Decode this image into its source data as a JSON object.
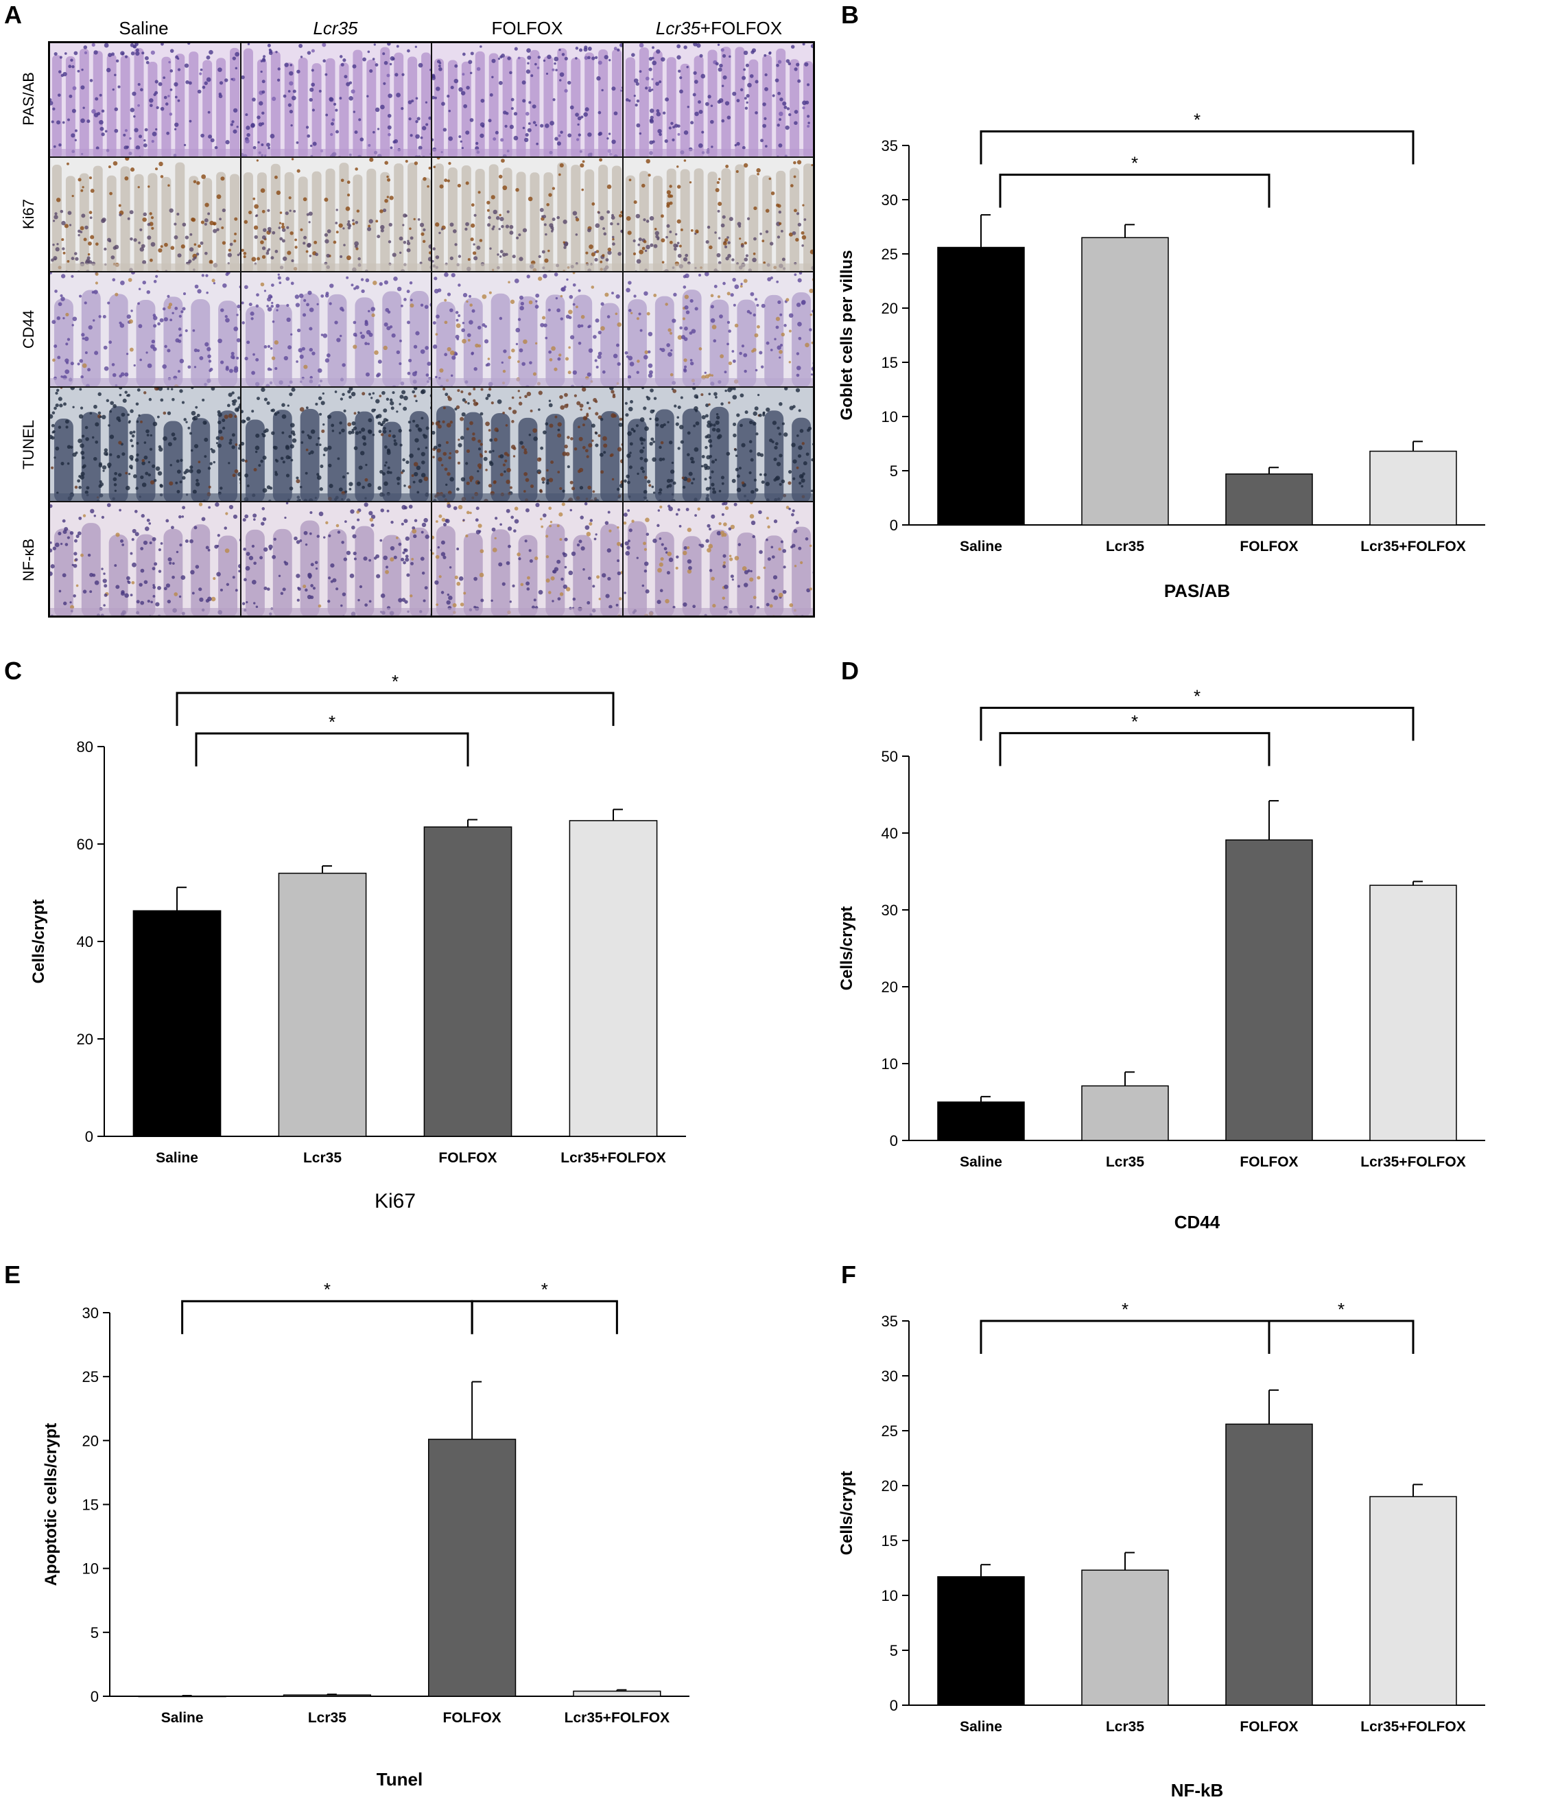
{
  "panel_a": {
    "label": "A",
    "columns": [
      {
        "pre": "",
        "italic": "",
        "post": "Saline"
      },
      {
        "pre": "",
        "italic": "Lcr35",
        "post": ""
      },
      {
        "pre": "",
        "italic": "",
        "post": "FOLFOX"
      },
      {
        "pre": "",
        "italic": "Lcr35",
        "post": "+FOLFOX"
      }
    ],
    "rows": [
      "PAS/AB",
      "Ki67",
      "CD44",
      "TUNEL",
      "NF-κB"
    ],
    "stain_colors": [
      {
        "bg": "#e8dcef",
        "tissue": "#b89ad0",
        "nuclei": "#4b3a8c",
        "accent": "#7a5fb0"
      },
      {
        "bg": "#ececec",
        "tissue": "#c9c2b8",
        "nuclei": "#8a4a14",
        "accent": "#5a4a6a"
      },
      {
        "bg": "#e9e4ee",
        "tissue": "#b7a7cf",
        "nuclei": "#5f4a9a",
        "accent": "#b7874a"
      },
      {
        "bg": "#c9cfd8",
        "tissue": "#4a5570",
        "nuclei": "#1f2a3f",
        "accent": "#6a3a22"
      },
      {
        "bg": "#e9e0ea",
        "tissue": "#b5a0c4",
        "nuclei": "#4a3a80",
        "accent": "#b98a4a"
      }
    ]
  },
  "colors": {
    "Saline": "#000000",
    "Lcr35": "#c0c0c0",
    "FOLFOX": "#606060",
    "Lcr35+FOLFOX": "#e4e4e4"
  },
  "chart_data": [
    {
      "panel": "B",
      "type": "bar",
      "categories": [
        "Saline",
        "Lcr35",
        "FOLFOX",
        "Lcr35+FOLFOX"
      ],
      "values": [
        25.6,
        26.5,
        4.7,
        6.8
      ],
      "errors": [
        3.0,
        1.2,
        0.6,
        0.9
      ],
      "ylabel": "Goblet cells per villus",
      "xlabel": "PAS/AB",
      "ylim": [
        0,
        35
      ],
      "ticks": [
        0,
        5,
        10,
        15,
        20,
        25,
        30,
        35
      ],
      "significance": [
        {
          "from": 0,
          "to": 3,
          "label": "*",
          "level": 36.3
        },
        {
          "from": 0,
          "to": 2,
          "label": "*",
          "level": 32.3
        }
      ]
    },
    {
      "panel": "C",
      "type": "bar",
      "categories": [
        "Saline",
        "Lcr35",
        "FOLFOX",
        "Lcr35+FOLFOX"
      ],
      "values": [
        46.3,
        54.0,
        63.5,
        64.8
      ],
      "errors": [
        4.8,
        1.5,
        1.5,
        2.3
      ],
      "ylabel": "Cells/crypt",
      "xlabel": "Ki67",
      "ylim": [
        0,
        80
      ],
      "ticks": [
        0,
        20,
        40,
        60,
        80
      ],
      "significance": [
        {
          "from": 0,
          "to": 3,
          "label": "*",
          "level": 91.0
        },
        {
          "from": 0,
          "to": 2,
          "label": "*",
          "level": 82.7
        }
      ]
    },
    {
      "panel": "D",
      "type": "bar",
      "categories": [
        "Saline",
        "Lcr35",
        "FOLFOX",
        "Lcr35+FOLFOX"
      ],
      "values": [
        5.0,
        7.1,
        39.1,
        33.2
      ],
      "errors": [
        0.7,
        1.8,
        5.1,
        0.5
      ],
      "ylabel": "Cells/crypt",
      "xlabel": "CD44",
      "ylim": [
        0,
        50
      ],
      "ticks": [
        0,
        10,
        20,
        30,
        40,
        50
      ],
      "significance": [
        {
          "from": 0,
          "to": 3,
          "label": "*",
          "level": 56.3
        },
        {
          "from": 0,
          "to": 2,
          "label": "*",
          "level": 53.0
        }
      ]
    },
    {
      "panel": "E",
      "type": "bar",
      "categories": [
        "Saline",
        "Lcr35",
        "FOLFOX",
        "Lcr35+FOLFOX"
      ],
      "values": [
        0.0,
        0.1,
        20.1,
        0.4
      ],
      "errors": [
        0.05,
        0.05,
        4.5,
        0.1
      ],
      "ylabel": "Apoptotic cells/crypt",
      "xlabel": "Tunel",
      "ylim": [
        0,
        30
      ],
      "ticks": [
        0,
        5,
        10,
        15,
        20,
        25,
        30
      ],
      "significance": [
        {
          "from": 0,
          "to": 2,
          "label": "*",
          "level": 30.9
        },
        {
          "from": 2,
          "to": 3,
          "label": "*",
          "level": 30.9
        }
      ]
    },
    {
      "panel": "F",
      "type": "bar",
      "categories": [
        "Saline",
        "Lcr35",
        "FOLFOX",
        "Lcr35+FOLFOX"
      ],
      "values": [
        11.7,
        12.3,
        25.6,
        19.0
      ],
      "errors": [
        1.1,
        1.6,
        3.1,
        1.1
      ],
      "ylabel": "Cells/crypt",
      "xlabel": "NF-kB",
      "ylim": [
        0,
        35
      ],
      "ticks": [
        0,
        5,
        10,
        15,
        20,
        25,
        30,
        35
      ],
      "significance": [
        {
          "from": 0,
          "to": 2,
          "label": "*",
          "level": 35.0
        },
        {
          "from": 2,
          "to": 3,
          "label": "*",
          "level": 35.0
        }
      ]
    }
  ]
}
